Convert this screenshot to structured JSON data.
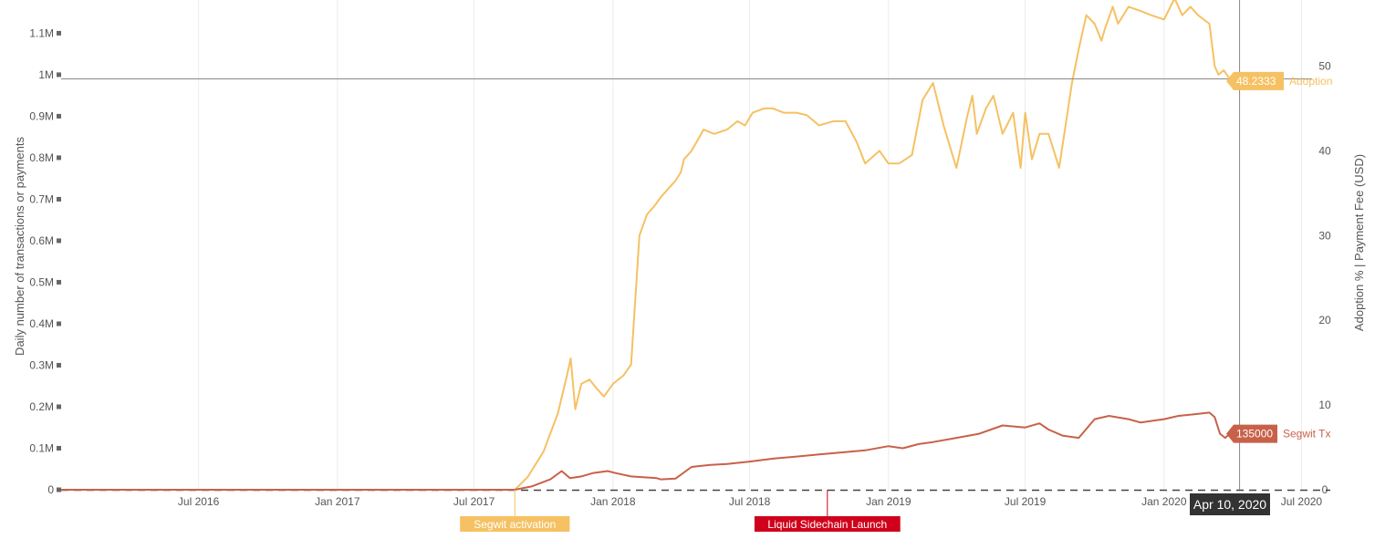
{
  "chart_data": {
    "type": "line",
    "ylabel": "Daily number of transactions or payments",
    "y2label": "Adoption % | Payment Fee (USD)",
    "x_ticks": [
      "Jul 2016",
      "Jan 2017",
      "Jul 2017",
      "Jan 2018",
      "Jul 2018",
      "Jan 2019",
      "Jul 2019",
      "Jan 2020",
      "Jul 2020"
    ],
    "x_tick_dates": [
      "2016-07-01",
      "2017-01-01",
      "2017-07-01",
      "2018-01-01",
      "2018-07-01",
      "2019-01-01",
      "2019-07-01",
      "2020-01-01",
      "2020-07-01"
    ],
    "xlim": [
      "2016-01-01",
      "2020-07-15"
    ],
    "y_ticks": [
      "0",
      "0.1M",
      "0.2M",
      "0.3M",
      "0.4M",
      "0.5M",
      "0.6M",
      "0.7M",
      "0.8M",
      "0.9M",
      "1M",
      "1.1M"
    ],
    "y_tick_values": [
      0,
      100000,
      200000,
      300000,
      400000,
      500000,
      600000,
      700000,
      800000,
      900000,
      1000000,
      1100000
    ],
    "ylim": [
      0,
      1180000
    ],
    "y2_ticks": [
      "0",
      "10",
      "20",
      "30",
      "40",
      "50"
    ],
    "y2_tick_values": [
      0,
      10,
      20,
      30,
      40,
      50
    ],
    "y2lim": [
      0,
      57.8
    ],
    "grid": true,
    "series": [
      {
        "name": "Adoption",
        "axis": "right",
        "color": "#f5c163",
        "x": [
          "2016-01-01",
          "2017-08-24",
          "2017-09-10",
          "2017-10-01",
          "2017-10-20",
          "2017-11-01",
          "2017-11-06",
          "2017-11-12",
          "2017-11-20",
          "2017-12-01",
          "2017-12-10",
          "2017-12-20",
          "2018-01-01",
          "2018-01-15",
          "2018-01-25",
          "2018-02-05",
          "2018-02-15",
          "2018-02-25",
          "2018-03-05",
          "2018-03-15",
          "2018-03-25",
          "2018-04-01",
          "2018-04-05",
          "2018-04-15",
          "2018-05-01",
          "2018-05-15",
          "2018-06-01",
          "2018-06-15",
          "2018-06-25",
          "2018-07-05",
          "2018-07-20",
          "2018-08-01",
          "2018-08-15",
          "2018-09-01",
          "2018-09-15",
          "2018-10-01",
          "2018-10-20",
          "2018-11-05",
          "2018-11-20",
          "2018-12-01",
          "2018-12-20",
          "2019-01-01",
          "2019-01-15",
          "2019-02-01",
          "2019-02-15",
          "2019-03-01",
          "2019-03-15",
          "2019-03-25",
          "2019-04-01",
          "2019-04-15",
          "2019-04-22",
          "2019-04-28",
          "2019-05-10",
          "2019-05-20",
          "2019-06-01",
          "2019-06-15",
          "2019-06-25",
          "2019-07-01",
          "2019-07-10",
          "2019-07-20",
          "2019-08-01",
          "2019-08-15",
          "2019-09-01",
          "2019-09-10",
          "2019-09-20",
          "2019-10-01",
          "2019-10-10",
          "2019-10-15",
          "2019-10-25",
          "2019-11-01",
          "2019-11-15",
          "2019-12-01",
          "2019-12-15",
          "2020-01-01",
          "2020-01-15",
          "2020-01-25",
          "2020-02-05",
          "2020-02-15",
          "2020-03-01",
          "2020-03-08",
          "2020-03-13",
          "2020-03-20",
          "2020-03-28",
          "2020-04-04",
          "2020-04-10"
        ],
        "values": [
          0,
          0,
          1.5,
          4.5,
          9,
          13.5,
          15.5,
          9.5,
          12.5,
          13,
          12,
          11,
          12.5,
          13.5,
          14.8,
          30,
          32.5,
          33.5,
          34.5,
          35.5,
          36.5,
          37.5,
          39,
          40,
          42.5,
          42,
          42.5,
          43.5,
          43,
          44.5,
          45,
          45,
          44.5,
          44.5,
          44.2,
          43,
          43.5,
          43.5,
          41,
          38.5,
          40,
          38.5,
          38.5,
          39.5,
          46,
          48,
          43,
          40,
          38,
          44,
          46.5,
          42,
          45,
          46.5,
          42,
          44.5,
          38,
          44.5,
          39,
          42,
          42,
          38,
          48,
          52,
          56,
          55,
          53,
          54.5,
          57,
          55,
          57,
          56.5,
          56,
          55.5,
          58,
          56,
          57,
          56,
          55,
          50,
          49,
          49.5,
          48.5,
          47.5,
          48.2333
        ],
        "last_label": "48.2333"
      },
      {
        "name": "Segwit Tx",
        "axis": "left",
        "color": "#c8614a",
        "x": [
          "2016-01-01",
          "2017-08-24",
          "2017-09-15",
          "2017-10-10",
          "2017-10-25",
          "2017-11-05",
          "2017-11-20",
          "2017-12-05",
          "2017-12-25",
          "2018-01-05",
          "2018-01-25",
          "2018-02-10",
          "2018-02-28",
          "2018-03-05",
          "2018-03-25",
          "2018-04-15",
          "2018-05-10",
          "2018-06-01",
          "2018-07-01",
          "2018-08-01",
          "2018-09-01",
          "2018-10-01",
          "2018-11-01",
          "2018-12-01",
          "2019-01-01",
          "2019-01-20",
          "2019-02-10",
          "2019-03-01",
          "2019-04-01",
          "2019-05-01",
          "2019-06-01",
          "2019-07-01",
          "2019-07-20",
          "2019-08-01",
          "2019-08-20",
          "2019-09-10",
          "2019-10-01",
          "2019-10-20",
          "2019-11-15",
          "2019-12-01",
          "2020-01-01",
          "2020-01-20",
          "2020-02-10",
          "2020-03-01",
          "2020-03-08",
          "2020-03-15",
          "2020-03-22",
          "2020-03-30",
          "2020-04-10"
        ],
        "values": [
          0,
          0,
          8000,
          25000,
          45000,
          28000,
          32000,
          40000,
          45000,
          40000,
          32000,
          30000,
          28000,
          25000,
          27000,
          55000,
          60000,
          62000,
          68000,
          75000,
          80000,
          85000,
          90000,
          95000,
          105000,
          100000,
          110000,
          115000,
          125000,
          135000,
          155000,
          150000,
          160000,
          145000,
          130000,
          125000,
          170000,
          178000,
          170000,
          162000,
          170000,
          178000,
          182000,
          186000,
          175000,
          135000,
          125000,
          138000,
          135000
        ],
        "last_label": "135000"
      }
    ],
    "annotations": [
      {
        "label": "Segwit activation",
        "date": "2017-08-24",
        "color": "#f5c163"
      },
      {
        "label": "Liquid Sidechain Launch",
        "date": "2018-10-12",
        "color": "#d0021b"
      }
    ],
    "crosshair_date": "2020-04-10",
    "crosshair_label": "Apr 10, 2020",
    "crosshair_left_value": 990000
  }
}
